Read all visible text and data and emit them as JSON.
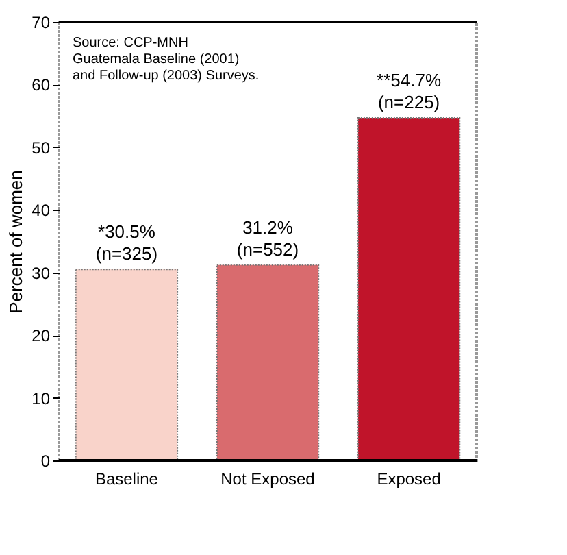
{
  "chart_data": {
    "type": "bar",
    "ylabel": "Percent of women",
    "categories": [
      "Baseline",
      "Not Exposed",
      "Exposed"
    ],
    "values": [
      30.5,
      31.2,
      54.7
    ],
    "colors": [
      "#f9d3ca",
      "#d96b6e",
      "#c0142a"
    ],
    "value_labels": [
      "*30.5%\n(n=325)",
      "31.2%\n(n=552)",
      "**54.7%\n(n=225)"
    ],
    "ylim": [
      0,
      70
    ],
    "yticks": [
      0,
      10,
      20,
      30,
      40,
      50,
      60,
      70
    ],
    "grid": false,
    "annotations": [
      "Source: CCP-MNH\nGuatemala Baseline (2001)\nand Follow-up (2003) Surveys."
    ]
  }
}
